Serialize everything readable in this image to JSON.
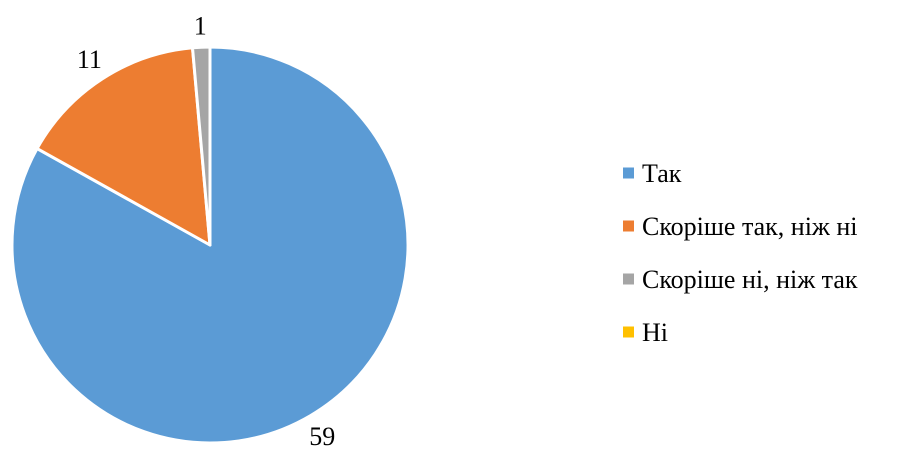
{
  "chart_data": {
    "type": "pie",
    "title": "",
    "categories": [
      "Так",
      "Скоріше так, ніж ні",
      "Скоріше ні, ніж так",
      "Ні"
    ],
    "values": [
      59,
      11,
      1,
      0
    ],
    "colors": [
      "#5B9BD5",
      "#ED7D31",
      "#A5A5A5",
      "#FFC000"
    ],
    "data_labels": [
      "59",
      "11",
      "1",
      ""
    ],
    "legend_position": "right",
    "start_angle": "12 o'clock",
    "direction": "clockwise"
  }
}
